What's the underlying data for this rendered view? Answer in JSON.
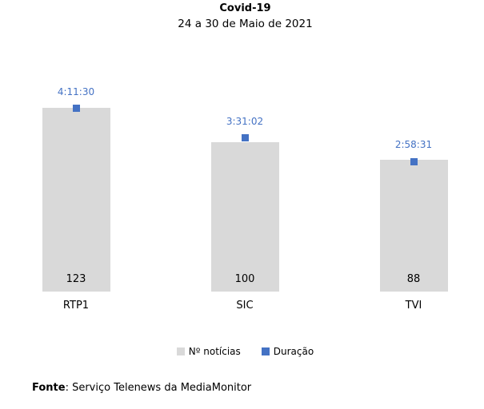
{
  "title": "Covid-19",
  "subtitle": "24 a 30 de Maio de 2021",
  "source": {
    "label": "Fonte",
    "rest": ": Serviço Telenews da MediaMonitor"
  },
  "legend": [
    {
      "name": "noticias",
      "label": "Nº notícias",
      "color": "#d9d9d9"
    },
    {
      "name": "duracao",
      "label": "Duração",
      "color": "#4472c4"
    }
  ],
  "colors": {
    "bar": "#d9d9d9",
    "marker": "#4472c4",
    "duration_text": "#4472c4",
    "text": "#000000",
    "background": "#ffffff"
  },
  "chart_data": {
    "type": "bar",
    "title": "Covid-19",
    "subtitle": "24 a 30 de Maio de 2021",
    "categories": [
      "RTP1",
      "SIC",
      "TVI"
    ],
    "series": [
      {
        "name": "Nº notícias",
        "type": "bar",
        "axis": "primary",
        "values": [
          123,
          100,
          88
        ]
      },
      {
        "name": "Duração",
        "type": "point",
        "axis": "secondary",
        "labels": [
          "4:11:30",
          "3:31:02",
          "2:58:31"
        ],
        "values_hours": [
          4.1917,
          3.5172,
          2.9753
        ]
      }
    ],
    "grid": false,
    "axes_visible": false,
    "data_labels": true,
    "legend_position": "bottom"
  }
}
